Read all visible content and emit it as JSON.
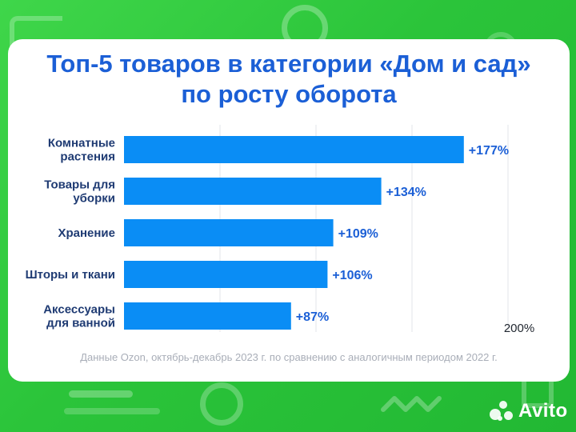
{
  "chart_data": {
    "type": "bar",
    "orientation": "horizontal",
    "title": "Топ-5 товаров в категории «Дом и сад» по росту оборота",
    "title_lines": [
      "Топ-5 товаров в категории «Дом и сад»",
      "по росту оборота"
    ],
    "categories": [
      [
        "Комнатные",
        "растения"
      ],
      [
        "Товары для",
        "уборки"
      ],
      [
        "Хранение"
      ],
      [
        "Шторы и ткани"
      ],
      [
        "Аксессуары",
        "для ванной"
      ]
    ],
    "values": [
      177,
      134,
      109,
      106,
      87
    ],
    "value_labels": [
      "+177%",
      "+134%",
      "+109%",
      "+106%",
      "+87%"
    ],
    "xlim": [
      0,
      200
    ],
    "x_tick_label": "200%",
    "grid": true,
    "bar_color": "#0a8df5"
  },
  "footnote": "Данные Ozon, октябрь-декабрь 2023 г. по сравнению с аналогичным периодом 2022 г.",
  "logo": {
    "text": "Avito",
    "icon": "avito-logo-icon"
  },
  "colors": {
    "title": "#1b5fd6",
    "labels": "#1f3b73",
    "background": "#2bc43a"
  }
}
